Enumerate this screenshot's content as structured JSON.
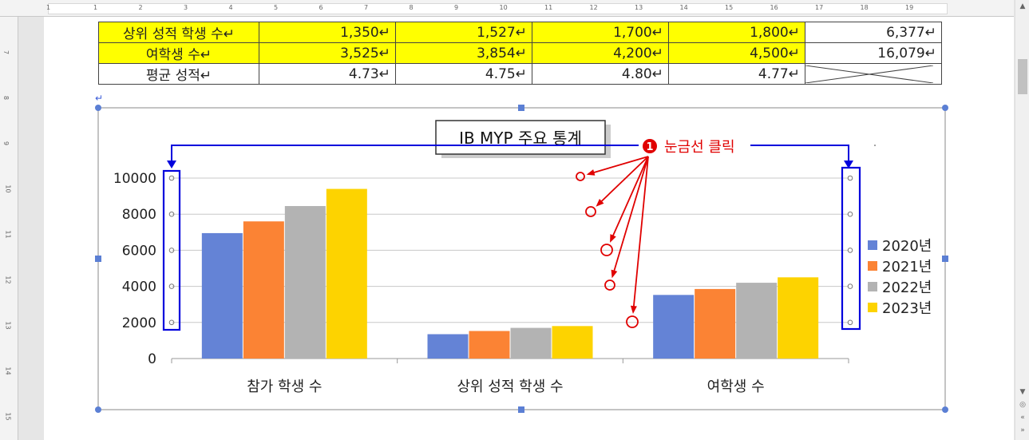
{
  "ruler": {
    "numbers": [
      "1",
      "1",
      "2",
      "3",
      "4",
      "5",
      "6",
      "7",
      "8",
      "9",
      "10",
      "11",
      "12",
      "13",
      "14",
      "15",
      "16",
      "17",
      "18",
      "19"
    ],
    "vnumbers": [
      "7",
      "8",
      "9",
      "10",
      "11",
      "12",
      "13",
      "14",
      "15"
    ]
  },
  "table": {
    "rows": [
      {
        "label": "상위 성적 학생 수",
        "values": [
          "1,350",
          "1,527",
          "1,700",
          "1,800"
        ],
        "total": "6,377",
        "highlight": true
      },
      {
        "label": "여학생 수",
        "values": [
          "3,525",
          "3,854",
          "4,200",
          "4,500"
        ],
        "total": "16,079",
        "highlight": true
      },
      {
        "label": "평균 성적",
        "values": [
          "4.73",
          "4.75",
          "4.80",
          "4.77"
        ],
        "total": "",
        "highlight": false
      }
    ],
    "mark": "↵"
  },
  "annotation": {
    "badge": "1",
    "text": "눈금선 클릭"
  },
  "colors": {
    "s2020": "#6483d6",
    "s2021": "#fb8334",
    "s2022": "#b3b3b3",
    "s2023": "#fdd300",
    "annotation": "#e00000",
    "callout": "#0000dd"
  },
  "chart_data": {
    "type": "bar",
    "title": "IB MYP 주요 통계",
    "categories": [
      "참가 학생 수",
      "상위 성적 학생 수",
      "여학생 수"
    ],
    "series": [
      {
        "name": "2020년",
        "values": [
          6950,
          1350,
          3525
        ]
      },
      {
        "name": "2021년",
        "values": [
          7600,
          1527,
          3854
        ]
      },
      {
        "name": "2022년",
        "values": [
          8450,
          1700,
          4200
        ]
      },
      {
        "name": "2023년",
        "values": [
          9400,
          1800,
          4500
        ]
      }
    ],
    "ylim": [
      0,
      10000
    ],
    "yticks": [
      "0",
      "2000",
      "4000",
      "6000",
      "8000",
      "10000"
    ],
    "grid": true,
    "legend": "right"
  }
}
